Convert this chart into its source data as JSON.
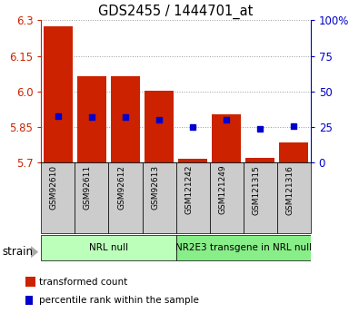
{
  "title": "GDS2455 / 1444701_at",
  "samples": [
    "GSM92610",
    "GSM92611",
    "GSM92612",
    "GSM92613",
    "GSM121242",
    "GSM121249",
    "GSM121315",
    "GSM121316"
  ],
  "groups": [
    {
      "label": "NRL null",
      "start": 0,
      "end": 3,
      "color": "#bbffbb"
    },
    {
      "label": "NR2E3 transgene in NRL null",
      "start": 4,
      "end": 7,
      "color": "#88ee88"
    }
  ],
  "transformed_count": [
    6.275,
    6.065,
    6.065,
    6.005,
    5.715,
    5.905,
    5.72,
    5.785
  ],
  "percentile_rank": [
    33,
    32,
    32,
    30,
    25,
    30,
    24,
    26
  ],
  "ylim_left": [
    5.7,
    6.3
  ],
  "ylim_right": [
    0,
    100
  ],
  "yticks_left": [
    5.7,
    5.85,
    6.0,
    6.15,
    6.3
  ],
  "yticks_right": [
    0,
    25,
    50,
    75,
    100
  ],
  "bar_color": "#cc2200",
  "dot_color": "#0000cc",
  "grid_color": "#999999",
  "bg_color": "#ffffff",
  "sample_bg_color": "#cccccc",
  "bar_width": 0.85,
  "legend_tc_label": "transformed count",
  "legend_pr_label": "percentile rank within the sample",
  "strain_label": "strain"
}
